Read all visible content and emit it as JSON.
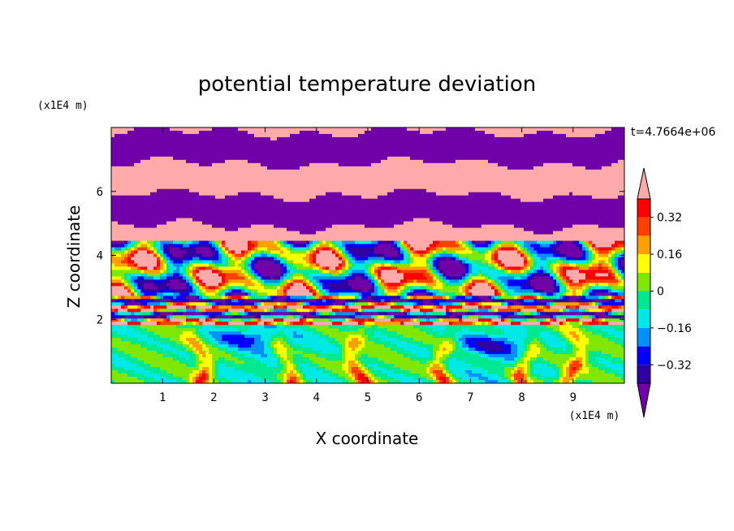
{
  "chart_data": {
    "type": "heatmap",
    "title": "potential temperature deviation",
    "xlabel": "X coordinate",
    "ylabel": "Z coordinate",
    "x_unit": "(x1E4 m)",
    "y_unit": "(x1E4 m)",
    "time_label": "t=4.7664e+06",
    "xlim": [
      0,
      10
    ],
    "ylim": [
      0,
      8
    ],
    "x_ticks": [
      "1",
      "2",
      "3",
      "4",
      "5",
      "6",
      "7",
      "8",
      "9"
    ],
    "y_ticks": [
      "2",
      "4",
      "6"
    ],
    "colorbar": {
      "labels": [
        "0.32",
        "0.16",
        "0",
        "-0.16",
        "-0.32"
      ],
      "label_values": [
        0.32,
        0.16,
        0,
        -0.16,
        -0.32
      ],
      "levels": [
        -0.4,
        -0.32,
        -0.24,
        -0.16,
        -0.08,
        0,
        0.08,
        0.16,
        0.24,
        0.32,
        0.4
      ],
      "colors": [
        "#7000a8",
        "#3000a0",
        "#0000ff",
        "#0090ff",
        "#00e8e8",
        "#00e890",
        "#80e800",
        "#ffff00",
        "#ffa000",
        "#ff4000",
        "#ff0000",
        "#ffaaaa"
      ],
      "over_color": "#ffaaaa",
      "under_color": "#7000a8"
    }
  }
}
